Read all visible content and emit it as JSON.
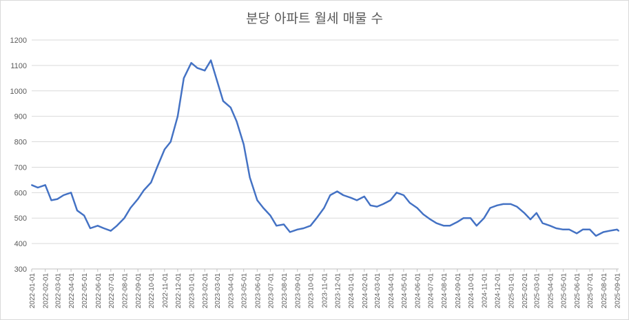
{
  "chart_data": {
    "type": "line",
    "title": "분당 아파트 월세 매물 수",
    "xlabel": "",
    "ylabel": "",
    "ylim": [
      300,
      1200
    ],
    "y_ticks": [
      300,
      400,
      500,
      600,
      700,
      800,
      900,
      1000,
      1100,
      1200
    ],
    "grid": "horizontal",
    "legend": "none",
    "line_color": "#4472C4",
    "x_tick_labels": [
      "2022-01-01",
      "2022-02-01",
      "2022-03-01",
      "2022-04-01",
      "2022-05-01",
      "2022-06-01",
      "2022-07-01",
      "2022-08-01",
      "2022-09-01",
      "2022-10-01",
      "2022-11-01",
      "2022-12-01",
      "2023-01-01",
      "2023-02-01",
      "2023-03-01",
      "2023-04-01",
      "2023-05-01",
      "2023-06-01",
      "2023-07-01",
      "2023-08-01",
      "2023-09-01",
      "2023-10-01",
      "2023-11-01",
      "2023-12-01",
      "2024-01-01",
      "2024-02-01",
      "2024-03-01",
      "2024-04-01",
      "2024-05-01",
      "2024-06-01",
      "2024-07-01",
      "2024-08-01",
      "2024-09-01",
      "2024-10-01",
      "2024-11-01",
      "2024-12-01",
      "2025-01-01",
      "2025-02-01",
      "2025-03-01",
      "2025-04-01",
      "2025-05-01",
      "2025-06-01",
      "2025-07-01",
      "2025-08-01",
      "2025-09-01"
    ],
    "series": [
      {
        "x": [
          "2022-01-01",
          "2022-01-15",
          "2022-02-01",
          "2022-02-15",
          "2022-03-01",
          "2022-03-15",
          "2022-04-01",
          "2022-04-15",
          "2022-05-01",
          "2022-05-15",
          "2022-06-01",
          "2022-06-15",
          "2022-07-01",
          "2022-07-15",
          "2022-08-01",
          "2022-08-15",
          "2022-09-01",
          "2022-09-15",
          "2022-10-01",
          "2022-10-15",
          "2022-11-01",
          "2022-11-15",
          "2022-12-01",
          "2022-12-15",
          "2023-01-01",
          "2023-01-15",
          "2023-02-01",
          "2023-02-15",
          "2023-03-01",
          "2023-03-15",
          "2023-04-01",
          "2023-04-15",
          "2023-05-01",
          "2023-05-15",
          "2023-06-01",
          "2023-06-15",
          "2023-07-01",
          "2023-07-15",
          "2023-08-01",
          "2023-08-15",
          "2023-09-01",
          "2023-09-15",
          "2023-10-01",
          "2023-10-15",
          "2023-11-01",
          "2023-11-15",
          "2023-12-01",
          "2023-12-15",
          "2024-01-01",
          "2024-01-15",
          "2024-02-01",
          "2024-02-15",
          "2024-03-01",
          "2024-03-15",
          "2024-04-01",
          "2024-04-15",
          "2024-05-01",
          "2024-05-15",
          "2024-06-01",
          "2024-06-15",
          "2024-07-01",
          "2024-07-15",
          "2024-08-01",
          "2024-08-15",
          "2024-09-01",
          "2024-09-15",
          "2024-10-01",
          "2024-10-15",
          "2024-11-01",
          "2024-11-15",
          "2024-12-01",
          "2024-12-15",
          "2025-01-01",
          "2025-01-15",
          "2025-02-01",
          "2025-02-15",
          "2025-03-01",
          "2025-03-15",
          "2025-04-01",
          "2025-04-15",
          "2025-05-01",
          "2025-05-15",
          "2025-06-01",
          "2025-06-15",
          "2025-07-01",
          "2025-07-15",
          "2025-08-01",
          "2025-08-15",
          "2025-09-01",
          "2025-09-05"
        ],
        "values": [
          630,
          620,
          630,
          570,
          575,
          590,
          600,
          530,
          510,
          460,
          470,
          460,
          450,
          470,
          500,
          540,
          575,
          610,
          640,
          700,
          770,
          800,
          900,
          1050,
          1110,
          1090,
          1080,
          1120,
          1040,
          960,
          935,
          880,
          790,
          660,
          570,
          540,
          510,
          470,
          475,
          445,
          455,
          460,
          470,
          500,
          540,
          590,
          605,
          590,
          580,
          570,
          585,
          550,
          545,
          555,
          570,
          600,
          590,
          560,
          540,
          515,
          495,
          480,
          470,
          470,
          485,
          500,
          500,
          470,
          500,
          540,
          550,
          555,
          555,
          545,
          520,
          495,
          520,
          480,
          470,
          460,
          455,
          455,
          440,
          455,
          455,
          430,
          445,
          450,
          455,
          450
        ]
      }
    ]
  }
}
